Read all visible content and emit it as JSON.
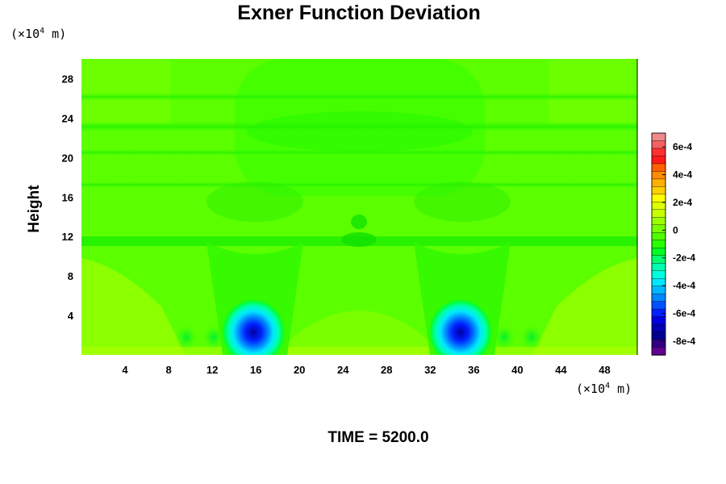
{
  "chart_data": {
    "type": "heatmap",
    "title": "Exner Function Deviation",
    "ylabel": "Height",
    "xlabel": "",
    "x_unit_label": {
      "prefix": "(×10",
      "exp": "4",
      "suffix": " m)"
    },
    "y_unit_label": {
      "prefix": "(×10",
      "exp": "4",
      "suffix": " m)"
    },
    "x_ticks": [
      4,
      8,
      12,
      16,
      20,
      24,
      28,
      32,
      36,
      40,
      44,
      48
    ],
    "y_ticks": [
      4,
      8,
      12,
      16,
      20,
      24,
      28
    ],
    "xlim": [
      0,
      51
    ],
    "ylim": [
      0,
      30
    ],
    "time_label": "TIME = 5200.0",
    "colorbar": {
      "labels": [
        "6e-4",
        "4e-4",
        "2e-4",
        "0",
        "-2e-4",
        "-4e-4",
        "-6e-4",
        "-8e-4"
      ],
      "label_values": [
        0.0006,
        0.0004,
        0.0002,
        0,
        -0.0002,
        -0.0004,
        -0.0006,
        -0.0008
      ],
      "vmin": -0.0009,
      "vmax": 0.0007,
      "colors_top_to_bottom": [
        "#f08a8a",
        "#f46060",
        "#ff3030",
        "#ff1a1a",
        "#ff6000",
        "#ff8c00",
        "#ffb000",
        "#ffd000",
        "#ffff00",
        "#e0ff00",
        "#c8ff00",
        "#9cff00",
        "#78ff00",
        "#50ff00",
        "#28ff00",
        "#00ff20",
        "#00ff70",
        "#00ffb0",
        "#00ffe0",
        "#00e8ff",
        "#00b8ff",
        "#0088ff",
        "#0050ff",
        "#0020ff",
        "#0000e0",
        "#0000b0",
        "#000090",
        "#300080",
        "#600090"
      ]
    },
    "features": [
      {
        "label": "low-pressure minimum",
        "x": 16,
        "y": 2.3,
        "value": -0.00085
      },
      {
        "label": "low-pressure minimum",
        "x": 35,
        "y": 2.3,
        "value": -0.00085
      }
    ]
  }
}
